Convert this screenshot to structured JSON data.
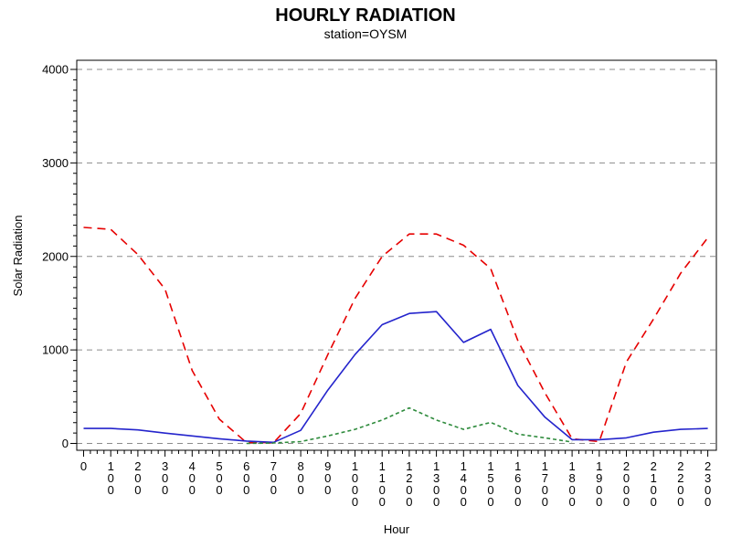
{
  "header": {
    "title": "HOURLY RADIATION",
    "subtitle": "station=OYSM"
  },
  "axes": {
    "y_label": "Solar Radiation",
    "x_label": "Hour"
  },
  "colors": {
    "frame": "#000000",
    "grid": "#8c8c8c",
    "background": "#ffffff"
  },
  "chart_data": {
    "type": "line",
    "title": "HOURLY RADIATION",
    "subtitle": "station=OYSM",
    "xlabel": "Hour",
    "ylabel": "Solar Radiation",
    "ylim": [
      0,
      4000
    ],
    "y_ticks": [
      0,
      1000,
      2000,
      3000,
      4000
    ],
    "x_ticks": [
      "0",
      "100",
      "200",
      "300",
      "400",
      "500",
      "600",
      "700",
      "800",
      "900",
      "1000",
      "1100",
      "1200",
      "1300",
      "1400",
      "1500",
      "1600",
      "1700",
      "1800",
      "1900",
      "2000",
      "2100",
      "2200",
      "2300"
    ],
    "x_hours": [
      0,
      1,
      2,
      3,
      4,
      5,
      6,
      7,
      8,
      9,
      10,
      11,
      12,
      13,
      14,
      15,
      16,
      17,
      18,
      19,
      20,
      21,
      22,
      23
    ],
    "grid": "horizontal-dashed",
    "legend": "none",
    "series": [
      {
        "name": "red-dashed",
        "color": "#e60000",
        "dash": "long-dash",
        "values": [
          2310,
          2290,
          2020,
          1650,
          780,
          260,
          10,
          8,
          320,
          950,
          1550,
          2000,
          2240,
          2240,
          2120,
          1870,
          1100,
          540,
          50,
          20,
          870,
          1330,
          1820,
          2200
        ]
      },
      {
        "name": "blue-solid",
        "color": "#2424cc",
        "dash": "solid",
        "values": [
          160,
          160,
          145,
          110,
          80,
          50,
          25,
          12,
          140,
          570,
          950,
          1270,
          1390,
          1410,
          1080,
          1220,
          620,
          280,
          40,
          40,
          60,
          120,
          150,
          160
        ]
      },
      {
        "name": "green-dotted",
        "color": "#2e8b3c",
        "dash": "short-dash",
        "values": [
          null,
          null,
          null,
          null,
          null,
          null,
          0,
          5,
          20,
          80,
          150,
          250,
          380,
          250,
          150,
          225,
          100,
          60,
          15,
          null,
          null,
          null,
          null,
          null
        ]
      }
    ]
  }
}
